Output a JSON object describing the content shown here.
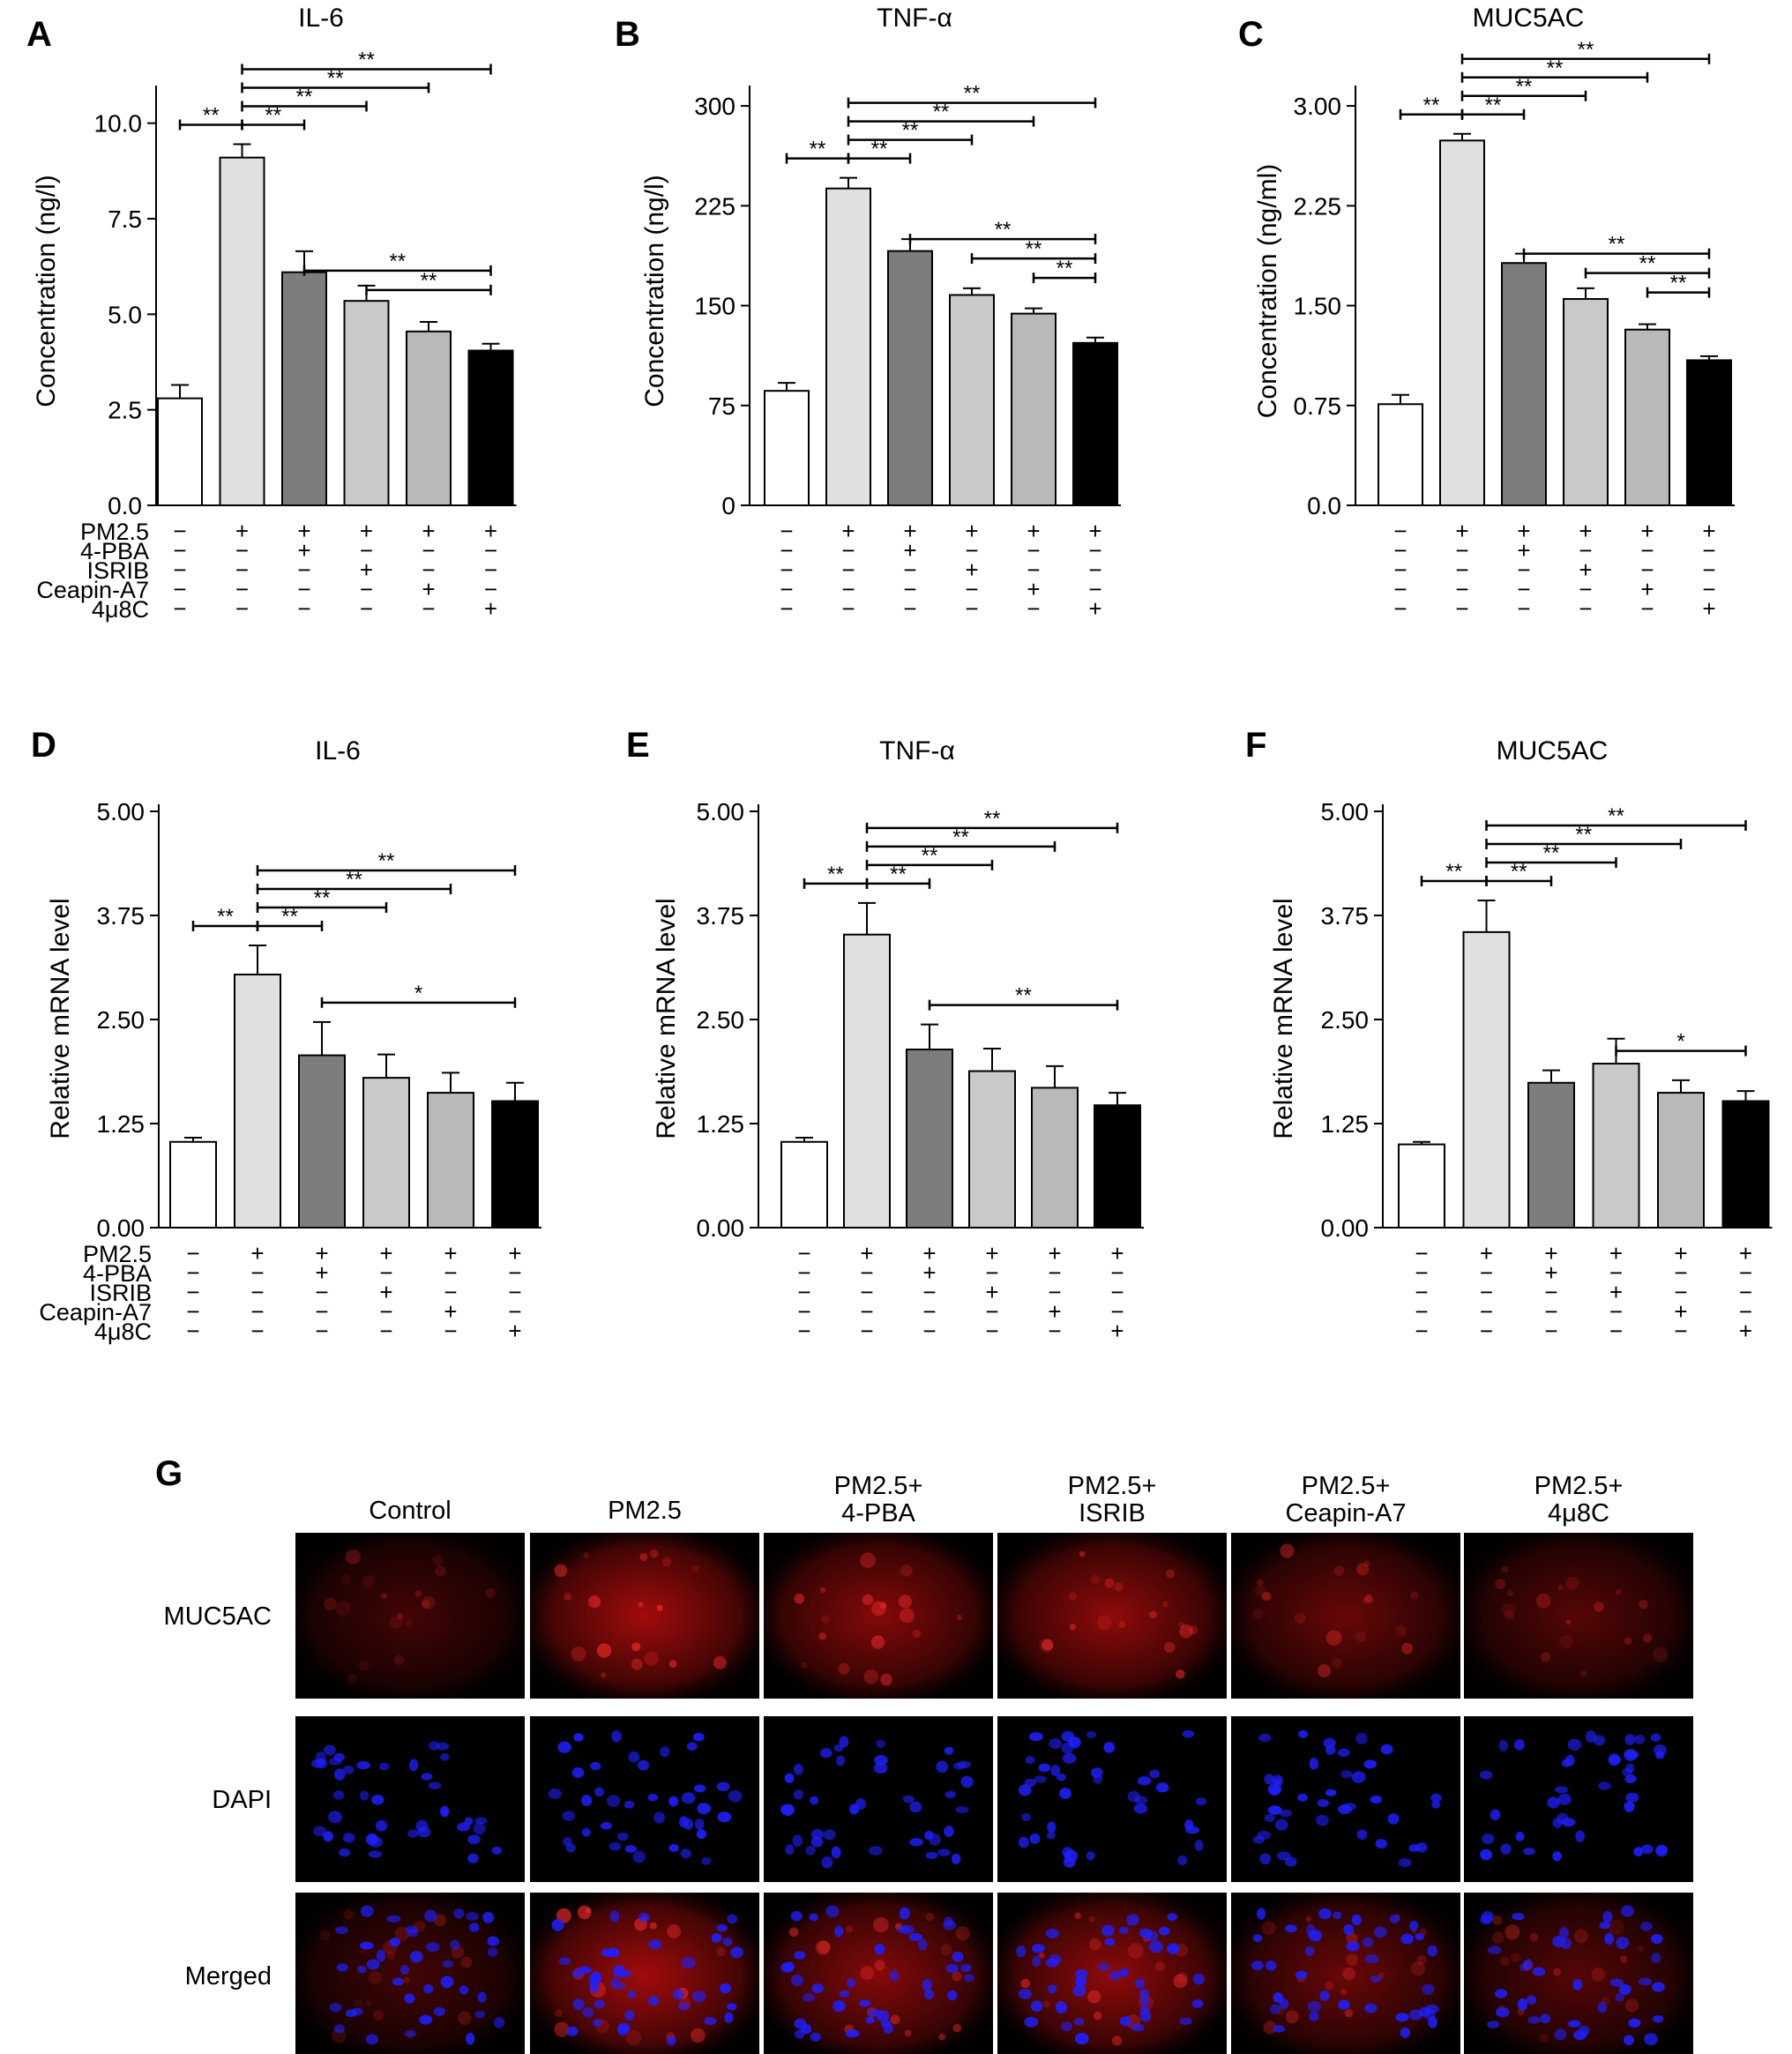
{
  "condition_labels": [
    "PM2.5",
    "4-PBA",
    "ISRIB",
    "Ceapin-A7",
    "4μ8C"
  ],
  "condition_matrix": [
    [
      "−",
      "+",
      "+",
      "+",
      "+",
      "+"
    ],
    [
      "−",
      "−",
      "+",
      "−",
      "−",
      "−"
    ],
    [
      "−",
      "−",
      "−",
      "+",
      "−",
      "−"
    ],
    [
      "−",
      "−",
      "−",
      "−",
      "+",
      "−"
    ],
    [
      "−",
      "−",
      "−",
      "−",
      "−",
      "+"
    ]
  ],
  "bar_colors": [
    "#ffffff",
    "#e0e0e0",
    "#7d7d7d",
    "#c9c9c9",
    "#b9b9b9",
    "#000000"
  ],
  "chart_data": [
    {
      "panel": "A",
      "type": "bar",
      "title": "IL-6",
      "xlabel": "",
      "ylabel": "Concentration (ng/l)",
      "ylim": [
        0,
        10.8
      ],
      "yticks": [
        "0.0",
        "2.5",
        "5.0",
        "7.5",
        "10.0"
      ],
      "ytick_values": [
        0,
        2.5,
        5.0,
        7.5,
        10.0
      ],
      "values": [
        2.8,
        9.1,
        6.1,
        5.35,
        4.55,
        4.05
      ],
      "errors": [
        0.35,
        0.35,
        0.55,
        0.4,
        0.25,
        0.18
      ],
      "sig": [
        {
          "from": 0,
          "to": 1,
          "label": "**",
          "row": 0
        },
        {
          "from": 1,
          "to": 2,
          "label": "**",
          "row": 0
        },
        {
          "from": 1,
          "to": 3,
          "label": "**",
          "row": 1
        },
        {
          "from": 1,
          "to": 4,
          "label": "**",
          "row": 2
        },
        {
          "from": 1,
          "to": 5,
          "label": "**",
          "row": 3
        },
        {
          "from": 2,
          "to": 5,
          "label": "**",
          "row": -3
        },
        {
          "from": 3,
          "to": 5,
          "label": "**",
          "row": -4
        }
      ]
    },
    {
      "panel": "B",
      "type": "bar",
      "title": "TNF-α",
      "xlabel": "",
      "ylabel": "Concentration (ng/l)",
      "ylim": [
        0,
        310
      ],
      "yticks": [
        "0",
        "75",
        "150",
        "225",
        "300"
      ],
      "ytick_values": [
        0,
        75,
        150,
        225,
        300
      ],
      "values": [
        86,
        238,
        191,
        158,
        144,
        122
      ],
      "errors": [
        6,
        8,
        9,
        5,
        4,
        4
      ],
      "sig": [
        {
          "from": 0,
          "to": 1,
          "label": "**",
          "row": 0
        },
        {
          "from": 1,
          "to": 2,
          "label": "**",
          "row": 0
        },
        {
          "from": 1,
          "to": 3,
          "label": "**",
          "row": 1
        },
        {
          "from": 1,
          "to": 4,
          "label": "**",
          "row": 2
        },
        {
          "from": 1,
          "to": 5,
          "label": "**",
          "row": 3
        },
        {
          "from": 2,
          "to": 5,
          "label": "**",
          "row": -2
        },
        {
          "from": 3,
          "to": 5,
          "label": "**",
          "row": -3
        },
        {
          "from": 4,
          "to": 5,
          "label": "**",
          "row": -4
        }
      ]
    },
    {
      "panel": "C",
      "type": "bar",
      "title": "MUC5AC",
      "xlabel": "",
      "ylabel": "Concentration (ng/ml)",
      "ylim": [
        0,
        3.1
      ],
      "yticks": [
        "0.0",
        "0.75",
        "1.50",
        "2.25",
        "3.00"
      ],
      "ytick_values": [
        0,
        0.75,
        1.5,
        2.25,
        3.0
      ],
      "values": [
        0.76,
        2.74,
        1.82,
        1.55,
        1.32,
        1.09
      ],
      "errors": [
        0.07,
        0.05,
        0.07,
        0.08,
        0.04,
        0.03
      ],
      "sig": [
        {
          "from": 0,
          "to": 1,
          "label": "**",
          "row": 0
        },
        {
          "from": 1,
          "to": 2,
          "label": "**",
          "row": 0
        },
        {
          "from": 1,
          "to": 3,
          "label": "**",
          "row": 1
        },
        {
          "from": 1,
          "to": 4,
          "label": "**",
          "row": 2
        },
        {
          "from": 1,
          "to": 5,
          "label": "**",
          "row": 3
        },
        {
          "from": 2,
          "to": 5,
          "label": "**",
          "row": -2
        },
        {
          "from": 3,
          "to": 5,
          "label": "**",
          "row": -3
        },
        {
          "from": 4,
          "to": 5,
          "label": "**",
          "row": -4
        }
      ]
    },
    {
      "panel": "D",
      "type": "bar",
      "title": "IL-6",
      "xlabel": "",
      "ylabel": "Relative mRNA level",
      "ylim": [
        0,
        5.0
      ],
      "yticks": [
        "0.00",
        "1.25",
        "2.50",
        "3.75",
        "5.00"
      ],
      "ytick_values": [
        0,
        1.25,
        2.5,
        3.75,
        5.0
      ],
      "values": [
        1.03,
        3.04,
        2.07,
        1.8,
        1.62,
        1.52
      ],
      "errors": [
        0.05,
        0.35,
        0.4,
        0.28,
        0.24,
        0.22
      ],
      "sig": [
        {
          "from": 0,
          "to": 1,
          "label": "**",
          "row": 0
        },
        {
          "from": 1,
          "to": 2,
          "label": "**",
          "row": 0
        },
        {
          "from": 1,
          "to": 3,
          "label": "**",
          "row": 1
        },
        {
          "from": 1,
          "to": 4,
          "label": "**",
          "row": 2
        },
        {
          "from": 1,
          "to": 5,
          "label": "**",
          "row": 3
        },
        {
          "from": 2,
          "to": 5,
          "label": "*",
          "row": -1
        }
      ]
    },
    {
      "panel": "E",
      "type": "bar",
      "title": "TNF-α",
      "xlabel": "",
      "ylabel": "Relative mRNA level",
      "ylim": [
        0,
        5.0
      ],
      "yticks": [
        "0.00",
        "1.25",
        "2.50",
        "3.75",
        "5.00"
      ],
      "ytick_values": [
        0,
        1.25,
        2.5,
        3.75,
        5.0
      ],
      "values": [
        1.03,
        3.52,
        2.14,
        1.88,
        1.68,
        1.47
      ],
      "errors": [
        0.05,
        0.38,
        0.3,
        0.27,
        0.26,
        0.15
      ],
      "sig": [
        {
          "from": 0,
          "to": 1,
          "label": "**",
          "row": 0
        },
        {
          "from": 1,
          "to": 2,
          "label": "**",
          "row": 0
        },
        {
          "from": 1,
          "to": 3,
          "label": "**",
          "row": 1
        },
        {
          "from": 1,
          "to": 4,
          "label": "**",
          "row": 2
        },
        {
          "from": 1,
          "to": 5,
          "label": "**",
          "row": 3
        },
        {
          "from": 2,
          "to": 5,
          "label": "**",
          "row": -1
        }
      ]
    },
    {
      "panel": "F",
      "type": "bar",
      "title": "MUC5AC",
      "xlabel": "",
      "ylabel": "Relative mRNA level",
      "ylim": [
        0,
        5.0
      ],
      "yticks": [
        "0.00",
        "1.25",
        "2.50",
        "3.75",
        "5.00"
      ],
      "ytick_values": [
        0,
        1.25,
        2.5,
        3.75,
        5.0
      ],
      "values": [
        1.0,
        3.55,
        1.74,
        1.97,
        1.62,
        1.52
      ],
      "errors": [
        0.03,
        0.38,
        0.15,
        0.3,
        0.15,
        0.12
      ],
      "sig": [
        {
          "from": 0,
          "to": 1,
          "label": "**",
          "row": 0
        },
        {
          "from": 1,
          "to": 2,
          "label": "**",
          "row": 0
        },
        {
          "from": 1,
          "to": 3,
          "label": "**",
          "row": 1
        },
        {
          "from": 1,
          "to": 4,
          "label": "**",
          "row": 2
        },
        {
          "from": 1,
          "to": 5,
          "label": "**",
          "row": 3
        },
        {
          "from": 3,
          "to": 5,
          "label": "*",
          "row": -1
        }
      ]
    }
  ],
  "panel_g": {
    "letter": "G",
    "columns": [
      "Control",
      "PM2.5",
      "PM2.5+\n4-PBA",
      "PM2.5+\nISRIB",
      "PM2.5+\nCeapin-A7",
      "PM2.5+\n4μ8C"
    ],
    "rows": [
      "MUC5AC",
      "DAPI",
      "Merged"
    ],
    "muc5ac_intensity": [
      0.35,
      0.85,
      0.7,
      0.75,
      0.55,
      0.45
    ],
    "stain_colors": {
      "MUC5AC": "#e01010",
      "DAPI": "#2020ff",
      "background": "#000000"
    }
  }
}
